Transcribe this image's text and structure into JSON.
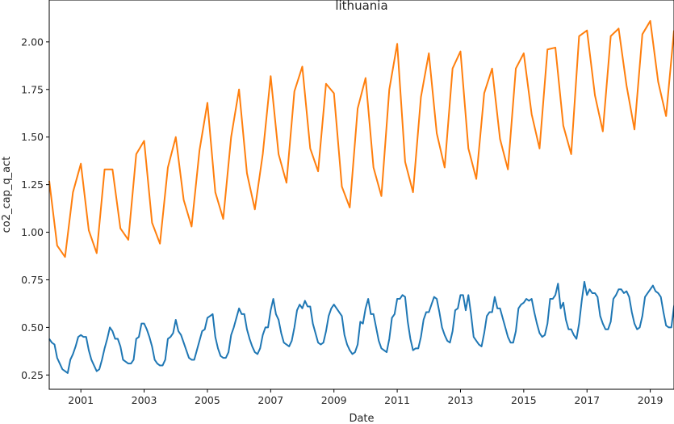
{
  "chart_data": {
    "type": "line",
    "title": "lithuania",
    "xlabel": "Date",
    "ylabel": "co2_cap_q_act",
    "xlim": [
      2000.0,
      2019.75
    ],
    "ylim": [
      0.175,
      2.22
    ],
    "grid": false,
    "legend": "none",
    "x_ticks": [
      2001,
      2003,
      2005,
      2007,
      2009,
      2011,
      2013,
      2015,
      2017,
      2019
    ],
    "y_ticks": [
      0.25,
      0.5,
      0.75,
      1.0,
      1.25,
      1.5,
      1.75,
      2.0
    ],
    "y_tick_labels": [
      "0.25",
      "0.50",
      "0.75",
      "1.00",
      "1.25",
      "1.50",
      "1.75",
      "2.00"
    ],
    "series": [
      {
        "color": "#1f77b4",
        "sampling": "monthly",
        "start": 2000.0,
        "values": [
          0.44,
          0.42,
          0.41,
          0.34,
          0.31,
          0.28,
          0.27,
          0.26,
          0.33,
          0.36,
          0.4,
          0.45,
          0.46,
          0.45,
          0.45,
          0.38,
          0.33,
          0.3,
          0.27,
          0.28,
          0.33,
          0.39,
          0.44,
          0.5,
          0.48,
          0.44,
          0.44,
          0.4,
          0.33,
          0.32,
          0.31,
          0.31,
          0.33,
          0.44,
          0.45,
          0.52,
          0.52,
          0.49,
          0.45,
          0.4,
          0.33,
          0.31,
          0.3,
          0.3,
          0.33,
          0.44,
          0.45,
          0.47,
          0.54,
          0.48,
          0.46,
          0.42,
          0.38,
          0.34,
          0.33,
          0.33,
          0.38,
          0.43,
          0.48,
          0.49,
          0.55,
          0.56,
          0.57,
          0.45,
          0.39,
          0.35,
          0.34,
          0.34,
          0.37,
          0.46,
          0.5,
          0.55,
          0.6,
          0.57,
          0.57,
          0.49,
          0.44,
          0.4,
          0.37,
          0.36,
          0.39,
          0.46,
          0.5,
          0.5,
          0.59,
          0.65,
          0.57,
          0.54,
          0.47,
          0.42,
          0.41,
          0.4,
          0.43,
          0.5,
          0.59,
          0.62,
          0.6,
          0.64,
          0.61,
          0.61,
          0.52,
          0.47,
          0.42,
          0.41,
          0.42,
          0.48,
          0.56,
          0.6,
          0.62,
          0.6,
          0.58,
          0.56,
          0.46,
          0.41,
          0.38,
          0.36,
          0.37,
          0.41,
          0.53,
          0.52,
          0.6,
          0.65,
          0.57,
          0.57,
          0.5,
          0.43,
          0.39,
          0.38,
          0.37,
          0.44,
          0.55,
          0.57,
          0.65,
          0.65,
          0.67,
          0.66,
          0.53,
          0.44,
          0.38,
          0.39,
          0.39,
          0.45,
          0.54,
          0.58,
          0.58,
          0.62,
          0.66,
          0.65,
          0.58,
          0.5,
          0.46,
          0.43,
          0.42,
          0.48,
          0.59,
          0.6,
          0.67,
          0.67,
          0.59,
          0.67,
          0.57,
          0.45,
          0.43,
          0.41,
          0.4,
          0.47,
          0.56,
          0.58,
          0.58,
          0.66,
          0.6,
          0.6,
          0.55,
          0.5,
          0.45,
          0.42,
          0.42,
          0.48,
          0.6,
          0.62,
          0.63,
          0.65,
          0.64,
          0.65,
          0.58,
          0.52,
          0.47,
          0.45,
          0.46,
          0.52,
          0.65,
          0.65,
          0.67,
          0.73,
          0.6,
          0.63,
          0.54,
          0.49,
          0.49,
          0.46,
          0.44,
          0.52,
          0.64,
          0.74,
          0.67,
          0.7,
          0.68,
          0.68,
          0.66,
          0.56,
          0.52,
          0.49,
          0.49,
          0.53,
          0.65,
          0.67,
          0.7,
          0.7,
          0.68,
          0.69,
          0.66,
          0.58,
          0.52,
          0.49,
          0.5,
          0.56,
          0.66,
          0.68,
          0.7,
          0.72,
          0.69,
          0.68,
          0.66,
          0.58,
          0.51,
          0.5,
          0.5,
          0.61,
          0.67
        ]
      },
      {
        "color": "#ff7f0e",
        "sampling": "quarterly",
        "start": 2000.0,
        "values": [
          1.27,
          0.93,
          0.87,
          1.21,
          1.36,
          1.01,
          0.89,
          1.33,
          1.33,
          1.02,
          0.96,
          1.41,
          1.48,
          1.05,
          0.94,
          1.34,
          1.5,
          1.17,
          1.03,
          1.43,
          1.68,
          1.21,
          1.07,
          1.5,
          1.75,
          1.31,
          1.12,
          1.41,
          1.82,
          1.41,
          1.26,
          1.74,
          1.87,
          1.44,
          1.32,
          1.78,
          1.73,
          1.24,
          1.13,
          1.65,
          1.81,
          1.34,
          1.19,
          1.75,
          1.99,
          1.37,
          1.21,
          1.71,
          1.94,
          1.52,
          1.34,
          1.86,
          1.95,
          1.44,
          1.28,
          1.73,
          1.86,
          1.49,
          1.33,
          1.86,
          1.94,
          1.62,
          1.44,
          1.96,
          1.97,
          1.56,
          1.41,
          2.03,
          2.06,
          1.72,
          1.53,
          2.03,
          2.07,
          1.77,
          1.54,
          2.04,
          2.11,
          1.79,
          1.61,
          2.06
        ]
      }
    ]
  }
}
